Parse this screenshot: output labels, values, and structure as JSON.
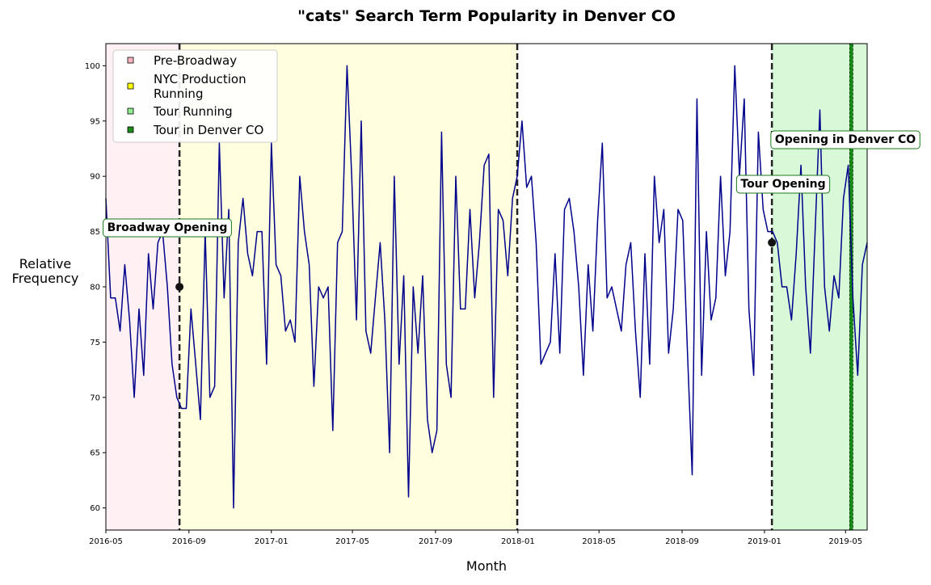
{
  "chart_data": {
    "type": "line",
    "title": "\"cats\" Search Term Popularity in Denver CO",
    "xlabel": "Month",
    "ylabel": "Relative\nFrequency",
    "xlim": [
      "2016-05-01",
      "2019-06-02"
    ],
    "ylim": [
      58,
      102
    ],
    "x_ticks": [
      "2016-05",
      "2016-09",
      "2017-01",
      "2017-05",
      "2017-09",
      "2018-01",
      "2018-05",
      "2018-09",
      "2019-01",
      "2019-05"
    ],
    "y_ticks": [
      60,
      65,
      70,
      75,
      80,
      85,
      90,
      95,
      100
    ],
    "grid": false,
    "legend_position": "top-left",
    "series": [
      {
        "color": "#00008b",
        "x_start": "2016-05-01",
        "x_step_days": 7,
        "values": [
          88,
          79,
          79,
          76,
          82,
          77,
          70,
          78,
          72,
          83,
          78,
          84,
          85,
          80,
          73,
          70,
          69,
          69,
          78,
          73,
          68,
          85,
          70,
          71,
          93,
          79,
          87,
          60,
          84,
          88,
          83,
          81,
          85,
          85,
          73,
          93,
          82,
          81,
          76,
          77,
          75,
          90,
          85,
          82,
          71,
          80,
          79,
          80,
          67,
          84,
          85,
          100,
          90,
          77,
          95,
          76,
          74,
          79,
          84,
          77,
          65,
          90,
          73,
          81,
          61,
          80,
          74,
          81,
          68,
          65,
          67,
          94,
          73,
          70,
          90,
          78,
          78,
          87,
          79,
          84,
          91,
          92,
          70,
          87,
          86,
          81,
          88,
          90,
          95,
          89,
          90,
          84,
          73,
          74,
          75,
          83,
          74,
          87,
          88,
          85,
          80,
          72,
          82,
          76,
          86,
          93,
          79,
          80,
          78,
          76,
          82,
          84,
          76,
          70,
          83,
          73,
          90,
          84,
          87,
          74,
          78,
          87,
          86,
          74,
          63,
          97,
          72,
          85,
          77,
          79,
          90,
          81,
          85,
          100,
          90,
          97,
          78,
          72,
          94,
          87,
          85,
          85,
          84,
          80,
          80,
          77,
          83,
          91,
          80,
          74,
          85,
          96,
          80,
          76,
          81,
          79,
          88,
          91,
          79,
          72,
          82,
          84
        ]
      }
    ],
    "regions": [
      {
        "label": "Pre-Broadway",
        "start": "2016-05-01",
        "end": "2016-08-18",
        "color": "#ffb6c1",
        "alpha": 0.2
      },
      {
        "label": "NYC Production\nRunning",
        "start": "2016-08-18",
        "end": "2017-12-31",
        "color": "#ffff00",
        "alpha": 0.12
      },
      {
        "label": "Tour Running",
        "start": "2019-01-12",
        "end": "2019-06-02",
        "color": "#90ee90",
        "alpha": 0.35
      },
      {
        "label": "Tour in Denver CO",
        "start": "2019-05-07",
        "end": "2019-05-12",
        "color": "#008000",
        "alpha": 0.9
      }
    ],
    "events": [
      {
        "label": "Broadway Opening",
        "date": "2016-08-18",
        "value": 80
      },
      {
        "label": "Tour Opening",
        "date": "2019-01-12",
        "value": 84
      },
      {
        "label": "Opening in Denver CO",
        "date": null,
        "value": null
      }
    ],
    "vlines": [
      "2016-08-18",
      "2017-12-31",
      "2019-01-12"
    ]
  }
}
